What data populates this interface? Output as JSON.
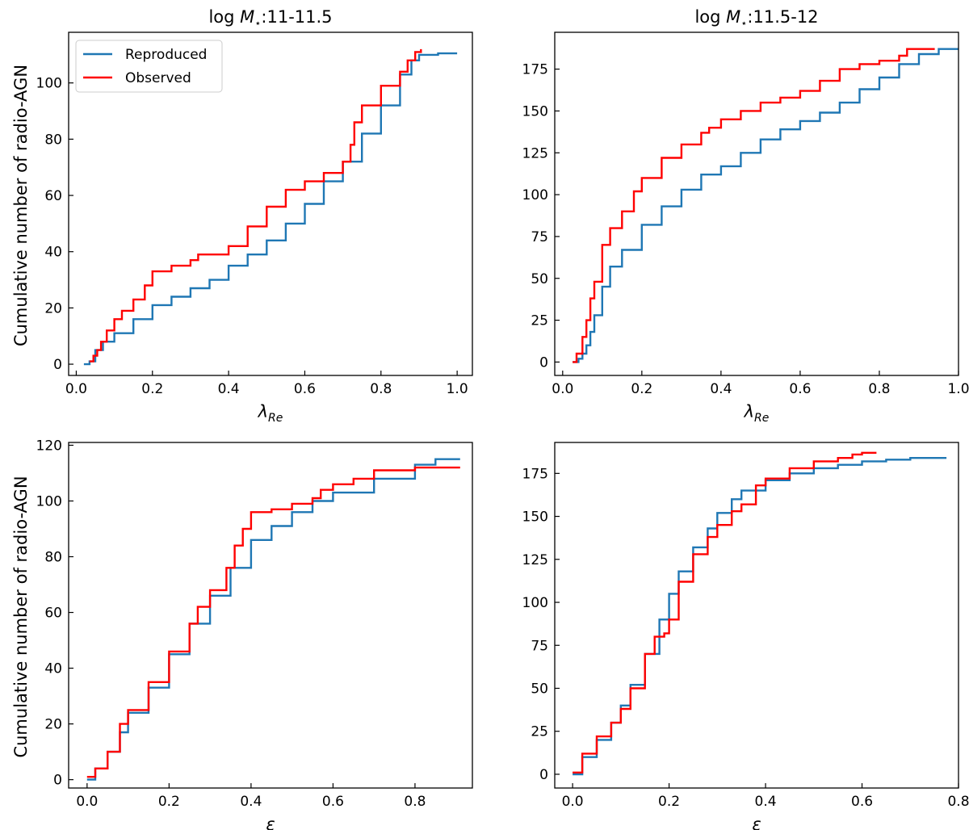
{
  "figure": {
    "ylabel": "Cumulative number of radio-AGN"
  },
  "legend": {
    "placement": "upper-left of first panel",
    "entries": [
      {
        "label": "Reproduced",
        "color": "#1f77b4"
      },
      {
        "label": "Observed",
        "color": "#ff0000"
      }
    ]
  },
  "chart_data": [
    {
      "type": "line",
      "title_prefix": "log",
      "title_symbol": "M",
      "title_subscript": "⋆",
      "title_suffix": ":11-11.5",
      "xlabel_symbol": "λ",
      "xlabel_subscript": "Re",
      "ylabel": "Cumulative number of radio-AGN",
      "xlim": [
        -0.02,
        1.04
      ],
      "ylim": [
        -4,
        118
      ],
      "xticks": [
        0.0,
        0.2,
        0.4,
        0.6,
        0.8,
        1.0
      ],
      "xtick_labels": [
        "0.0",
        "0.2",
        "0.4",
        "0.6",
        "0.8",
        "1.0"
      ],
      "yticks": [
        0,
        20,
        40,
        60,
        80,
        100
      ],
      "ytick_labels": [
        "0",
        "20",
        "40",
        "60",
        "80",
        "100"
      ],
      "series": [
        {
          "name": "Reproduced",
          "color": "#1f77b4",
          "x": [
            0.02,
            0.035,
            0.05,
            0.07,
            0.1,
            0.15,
            0.2,
            0.25,
            0.3,
            0.35,
            0.4,
            0.45,
            0.5,
            0.55,
            0.6,
            0.65,
            0.7,
            0.75,
            0.8,
            0.85,
            0.88,
            0.9,
            0.95,
            1.0
          ],
          "y": [
            0,
            1,
            5,
            8,
            11,
            16,
            21,
            24,
            27,
            30,
            35,
            39,
            44,
            50,
            57,
            65,
            72,
            82,
            92,
            103,
            108,
            110,
            110.5,
            110.5
          ]
        },
        {
          "name": "Observed",
          "color": "#ff0000",
          "x": [
            0.035,
            0.045,
            0.055,
            0.065,
            0.08,
            0.1,
            0.12,
            0.15,
            0.18,
            0.2,
            0.25,
            0.3,
            0.32,
            0.35,
            0.4,
            0.45,
            0.5,
            0.55,
            0.6,
            0.65,
            0.7,
            0.72,
            0.73,
            0.75,
            0.8,
            0.85,
            0.87,
            0.89,
            0.905
          ],
          "y": [
            1,
            3,
            5,
            8,
            12,
            16,
            19,
            23,
            28,
            33,
            35,
            37,
            39,
            39,
            42,
            49,
            56,
            62,
            65,
            68,
            72,
            78,
            86,
            92,
            99,
            104,
            108,
            111,
            112
          ]
        }
      ]
    },
    {
      "type": "line",
      "title_prefix": "log",
      "title_symbol": "M",
      "title_subscript": "⋆",
      "title_suffix": ":11.5-12",
      "xlabel_symbol": "λ",
      "xlabel_subscript": "Re",
      "ylabel": "",
      "xlim": [
        -0.02,
        1.0
      ],
      "ylim": [
        -8,
        197
      ],
      "xticks": [
        0.0,
        0.2,
        0.4,
        0.6,
        0.8,
        1.0
      ],
      "xtick_labels": [
        "0.0",
        "0.2",
        "0.4",
        "0.6",
        "0.8",
        "1.0"
      ],
      "yticks": [
        0,
        25,
        50,
        75,
        100,
        125,
        150,
        175
      ],
      "ytick_labels": [
        "0",
        "25",
        "50",
        "75",
        "100",
        "125",
        "150",
        "175"
      ],
      "series": [
        {
          "name": "Reproduced",
          "color": "#1f77b4",
          "x": [
            0.025,
            0.04,
            0.05,
            0.06,
            0.07,
            0.08,
            0.1,
            0.12,
            0.15,
            0.2,
            0.25,
            0.3,
            0.35,
            0.4,
            0.45,
            0.5,
            0.55,
            0.6,
            0.65,
            0.7,
            0.75,
            0.8,
            0.85,
            0.9,
            0.95,
            1.0
          ],
          "y": [
            0,
            2,
            5,
            10,
            18,
            28,
            45,
            57,
            67,
            82,
            93,
            103,
            112,
            117,
            125,
            133,
            139,
            144,
            149,
            155,
            163,
            170,
            178,
            184,
            187,
            187
          ]
        },
        {
          "name": "Observed",
          "color": "#ff0000",
          "x": [
            0.025,
            0.035,
            0.05,
            0.06,
            0.07,
            0.08,
            0.1,
            0.12,
            0.15,
            0.18,
            0.2,
            0.25,
            0.3,
            0.35,
            0.37,
            0.4,
            0.45,
            0.5,
            0.55,
            0.6,
            0.65,
            0.7,
            0.75,
            0.8,
            0.85,
            0.87,
            0.94
          ],
          "y": [
            0,
            5,
            15,
            25,
            38,
            48,
            70,
            80,
            90,
            102,
            110,
            122,
            130,
            137,
            140,
            145,
            150,
            155,
            158,
            162,
            168,
            175,
            178,
            180,
            183,
            187,
            187
          ]
        }
      ]
    },
    {
      "type": "line",
      "title_prefix": "",
      "title_symbol": "",
      "title_subscript": "",
      "title_suffix": "",
      "xlabel_symbol": "ε",
      "xlabel_subscript": "",
      "ylabel": "Cumulative number of radio-AGN",
      "xlim": [
        -0.045,
        0.94
      ],
      "ylim": [
        -3,
        121
      ],
      "xticks": [
        0.0,
        0.2,
        0.4,
        0.6,
        0.8
      ],
      "xtick_labels": [
        "0.0",
        "0.2",
        "0.4",
        "0.6",
        "0.8"
      ],
      "yticks": [
        0,
        20,
        40,
        60,
        80,
        100,
        120
      ],
      "ytick_labels": [
        "0",
        "20",
        "40",
        "60",
        "80",
        "100",
        "120"
      ],
      "series": [
        {
          "name": "Reproduced",
          "color": "#1f77b4",
          "x": [
            0.0,
            0.02,
            0.05,
            0.08,
            0.1,
            0.15,
            0.2,
            0.25,
            0.3,
            0.35,
            0.4,
            0.45,
            0.5,
            0.55,
            0.6,
            0.7,
            0.8,
            0.85,
            0.91
          ],
          "y": [
            0,
            4,
            10,
            17,
            24,
            33,
            45,
            56,
            66,
            76,
            86,
            91,
            96,
            100,
            103,
            108,
            113,
            115,
            115
          ]
        },
        {
          "name": "Observed",
          "color": "#ff0000",
          "x": [
            0.0,
            0.02,
            0.05,
            0.08,
            0.1,
            0.15,
            0.2,
            0.25,
            0.27,
            0.3,
            0.34,
            0.36,
            0.38,
            0.4,
            0.45,
            0.5,
            0.55,
            0.57,
            0.6,
            0.65,
            0.7,
            0.8,
            0.91
          ],
          "y": [
            1,
            4,
            10,
            20,
            25,
            35,
            46,
            56,
            62,
            68,
            76,
            84,
            90,
            96,
            97,
            99,
            101,
            104,
            106,
            108,
            111,
            112,
            112
          ]
        }
      ]
    },
    {
      "type": "line",
      "title_prefix": "",
      "title_symbol": "",
      "title_subscript": "",
      "title_suffix": "",
      "xlabel_symbol": "ε",
      "xlabel_subscript": "",
      "ylabel": "",
      "xlim": [
        -0.037,
        0.8
      ],
      "ylim": [
        -8,
        193
      ],
      "xticks": [
        0.0,
        0.2,
        0.4,
        0.6,
        0.8
      ],
      "xtick_labels": [
        "0.0",
        "0.2",
        "0.4",
        "0.6",
        "0.8"
      ],
      "yticks": [
        0,
        25,
        50,
        75,
        100,
        125,
        150,
        175
      ],
      "ytick_labels": [
        "0",
        "25",
        "50",
        "75",
        "100",
        "125",
        "150",
        "175"
      ],
      "series": [
        {
          "name": "Reproduced",
          "color": "#1f77b4",
          "x": [
            0.0,
            0.02,
            0.05,
            0.08,
            0.1,
            0.12,
            0.15,
            0.18,
            0.2,
            0.22,
            0.25,
            0.28,
            0.3,
            0.33,
            0.35,
            0.4,
            0.45,
            0.5,
            0.55,
            0.6,
            0.65,
            0.7,
            0.775
          ],
          "y": [
            0,
            10,
            20,
            30,
            40,
            52,
            70,
            90,
            105,
            118,
            132,
            143,
            152,
            160,
            165,
            171,
            175,
            178,
            180,
            182,
            183,
            184,
            184
          ]
        },
        {
          "name": "Observed",
          "color": "#ff0000",
          "x": [
            0.0,
            0.02,
            0.05,
            0.08,
            0.1,
            0.12,
            0.15,
            0.17,
            0.19,
            0.2,
            0.22,
            0.25,
            0.28,
            0.3,
            0.33,
            0.35,
            0.38,
            0.4,
            0.45,
            0.5,
            0.55,
            0.58,
            0.6,
            0.63
          ],
          "y": [
            1,
            12,
            22,
            30,
            38,
            50,
            70,
            80,
            82,
            90,
            112,
            128,
            138,
            145,
            153,
            157,
            168,
            172,
            178,
            182,
            184,
            186,
            187,
            187
          ]
        }
      ]
    }
  ]
}
